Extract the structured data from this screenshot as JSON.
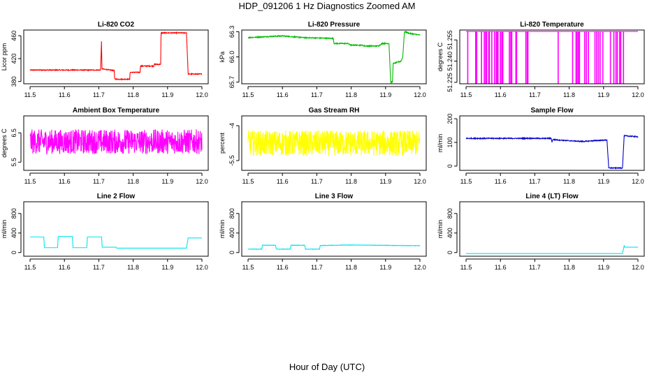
{
  "figure": {
    "title": "HDP_091206  1 Hz Diagnostics Zoomed AM",
    "xlabel": "Hour of Day (UTC)"
  },
  "chart_data": [
    {
      "type": "line",
      "title": "Li-820 CO2",
      "ylabel": "Licor ppm",
      "color": "#ff0000",
      "xlim": [
        11.5,
        12.0
      ],
      "ylim": [
        376,
        470
      ],
      "xticks": [
        "11.5",
        "11.6",
        "11.7",
        "11.8",
        "11.9",
        "12.0"
      ],
      "yticks": [
        {
          "v": 380,
          "label": "380"
        },
        {
          "v": 420,
          "label": "420"
        },
        {
          "v": 460,
          "label": "460"
        }
      ],
      "series": [
        {
          "name": "CO2",
          "noise": 0.8,
          "points": [
            [
              11.5,
              400
            ],
            [
              11.705,
              400
            ],
            [
              11.708,
              452
            ],
            [
              11.709,
              402
            ],
            [
              11.745,
              399
            ],
            [
              11.746,
              384
            ],
            [
              11.79,
              384
            ],
            [
              11.791,
              396
            ],
            [
              11.82,
              396
            ],
            [
              11.821,
              407
            ],
            [
              11.86,
              407
            ],
            [
              11.861,
              410
            ],
            [
              11.88,
              410
            ],
            [
              11.881,
              465
            ],
            [
              11.955,
              465
            ],
            [
              11.96,
              393
            ],
            [
              12.0,
              393
            ]
          ]
        }
      ]
    },
    {
      "type": "line",
      "title": "Li-820 Pressure",
      "ylabel": "kPa",
      "color": "#00bb00",
      "xlim": [
        11.5,
        12.0
      ],
      "ylim": [
        65.68,
        66.32
      ],
      "xticks": [
        "11.5",
        "11.6",
        "11.7",
        "11.8",
        "11.9",
        "12.0"
      ],
      "yticks": [
        {
          "v": 65.7,
          "label": "65.7"
        },
        {
          "v": 66.0,
          "label": "66.0"
        },
        {
          "v": 66.3,
          "label": "66.3"
        }
      ],
      "series": [
        {
          "name": "Pressure",
          "noise": 0.006,
          "points": [
            [
              11.5,
              66.23
            ],
            [
              11.6,
              66.25
            ],
            [
              11.66,
              66.23
            ],
            [
              11.748,
              66.22
            ],
            [
              11.75,
              66.16
            ],
            [
              11.79,
              66.16
            ],
            [
              11.8,
              66.14
            ],
            [
              11.83,
              66.14
            ],
            [
              11.84,
              66.13
            ],
            [
              11.88,
              66.13
            ],
            [
              11.89,
              66.16
            ],
            [
              11.91,
              66.16
            ],
            [
              11.915,
              65.7
            ],
            [
              11.92,
              65.7
            ],
            [
              11.922,
              65.92
            ],
            [
              11.945,
              65.95
            ],
            [
              11.95,
              66.0
            ],
            [
              11.955,
              66.3
            ],
            [
              11.97,
              66.28
            ],
            [
              12.0,
              66.26
            ]
          ]
        }
      ]
    },
    {
      "type": "line",
      "title": "Li-820 Temperature",
      "ylabel": "degrees C",
      "color": "#ff00ff",
      "xlim": [
        11.5,
        12.0
      ],
      "ylim": [
        51.224,
        51.262
      ],
      "xticks": [
        "11.5",
        "11.6",
        "11.7",
        "11.8",
        "11.9",
        "12.0"
      ],
      "yticks": [
        {
          "v": 51.225,
          "label": "51.225"
        },
        {
          "v": 51.24,
          "label": "51.240"
        },
        {
          "v": 51.255,
          "label": "51.255"
        }
      ],
      "series": [
        {
          "name": "Temperature",
          "noise": 0,
          "points": [
            [
              11.5,
              51.261
            ],
            [
              12.0,
              51.261
            ]
          ],
          "dips": [
            11.505,
            11.528,
            11.531,
            11.545,
            11.553,
            11.557,
            11.56,
            11.566,
            11.568,
            11.575,
            11.583,
            11.588,
            11.59,
            11.593,
            11.6,
            11.604,
            11.607,
            11.626,
            11.63,
            11.633,
            11.645,
            11.647,
            11.674,
            11.678,
            11.68,
            11.768,
            11.81,
            11.82,
            11.823,
            11.827,
            11.83,
            11.845,
            11.85,
            11.856,
            11.875,
            11.88,
            11.885,
            11.89,
            11.898,
            11.92,
            11.93,
            11.936,
            11.94,
            11.947,
            11.95,
            11.958
          ]
        }
      ]
    },
    {
      "type": "line",
      "title": "Ambient Box Temperature",
      "ylabel": "degrees C",
      "color": "#ff00ff",
      "xlim": [
        11.5,
        12.0
      ],
      "ylim": [
        5.22,
        7.08
      ],
      "xticks": [
        "11.5",
        "11.6",
        "11.7",
        "11.8",
        "11.9",
        "12.0"
      ],
      "yticks": [
        {
          "v": 5.5,
          "label": "5.5"
        },
        {
          "v": 6.5,
          "label": "6.5"
        }
      ],
      "series": [
        {
          "name": "Ambient",
          "noise": 0.42,
          "points": [
            [
              11.5,
              6.2
            ],
            [
              12.0,
              6.2
            ]
          ]
        }
      ]
    },
    {
      "type": "line",
      "title": "Gas Stream RH",
      "ylabel": "percent",
      "color": "#ffff00",
      "xlim": [
        11.5,
        12.0
      ],
      "ylim": [
        -5.92,
        -3.58
      ],
      "xticks": [
        "11.5",
        "11.6",
        "11.7",
        "11.8",
        "11.9",
        "12.0"
      ],
      "yticks": [
        {
          "v": -5.5,
          "label": "-5.5"
        },
        {
          "v": -4,
          "label": "-4"
        }
      ],
      "series": [
        {
          "name": "RH",
          "noise": 0.55,
          "points": [
            [
              11.5,
              -4.75
            ],
            [
              12.0,
              -4.75
            ]
          ]
        }
      ]
    },
    {
      "type": "line",
      "title": "Sample Flow",
      "ylabel": "ml/min",
      "color": "#0000cc",
      "xlim": [
        11.5,
        12.0
      ],
      "ylim": [
        -18,
        212
      ],
      "xticks": [
        "11.5",
        "11.6",
        "11.7",
        "11.8",
        "11.9",
        "12.0"
      ],
      "yticks": [
        {
          "v": 0,
          "label": "0"
        },
        {
          "v": 100,
          "label": "100"
        },
        {
          "v": 200,
          "label": "200"
        }
      ],
      "series": [
        {
          "name": "Sample",
          "noise": 2,
          "points": [
            [
              11.5,
              117
            ],
            [
              11.748,
              117
            ],
            [
              11.75,
              100
            ],
            [
              11.752,
              112
            ],
            [
              11.79,
              108
            ],
            [
              11.84,
              104
            ],
            [
              11.88,
              108
            ],
            [
              11.91,
              110
            ],
            [
              11.915,
              -8
            ],
            [
              11.955,
              -8
            ],
            [
              11.96,
              128
            ],
            [
              12.0,
              124
            ]
          ]
        }
      ]
    },
    {
      "type": "line",
      "title": "Line 2 Flow",
      "ylabel": "ml/min",
      "color": "#00e5ee",
      "xlim": [
        11.5,
        12.0
      ],
      "ylim": [
        -75,
        1040
      ],
      "xticks": [
        "11.5",
        "11.6",
        "11.7",
        "11.8",
        "11.9",
        "12.0"
      ],
      "yticks": [
        {
          "v": 0,
          "label": "0"
        },
        {
          "v": 400,
          "label": "400"
        },
        {
          "v": 800,
          "label": "800"
        }
      ],
      "series": [
        {
          "name": "Line 2",
          "noise": 0,
          "points": [
            [
              11.5,
              320
            ],
            [
              11.54,
              320
            ],
            [
              11.542,
              100
            ],
            [
              11.58,
              100
            ],
            [
              11.582,
              330
            ],
            [
              11.623,
              330
            ],
            [
              11.625,
              100
            ],
            [
              11.665,
              100
            ],
            [
              11.667,
              320
            ],
            [
              11.708,
              320
            ],
            [
              11.71,
              110
            ],
            [
              11.75,
              110
            ],
            [
              11.752,
              90
            ],
            [
              11.955,
              90
            ],
            [
              11.96,
              300
            ],
            [
              12.0,
              300
            ]
          ]
        }
      ]
    },
    {
      "type": "line",
      "title": "Line 3 Flow",
      "ylabel": "ml/min",
      "color": "#00e5ee",
      "xlim": [
        11.5,
        12.0
      ],
      "ylim": [
        -75,
        1040
      ],
      "xticks": [
        "11.5",
        "11.6",
        "11.7",
        "11.8",
        "11.9",
        "12.0"
      ],
      "yticks": [
        {
          "v": 0,
          "label": "0"
        },
        {
          "v": 400,
          "label": "400"
        },
        {
          "v": 800,
          "label": "800"
        }
      ],
      "series": [
        {
          "name": "Line 3",
          "noise": 4,
          "points": [
            [
              11.5,
              70
            ],
            [
              11.54,
              70
            ],
            [
              11.542,
              150
            ],
            [
              11.58,
              150
            ],
            [
              11.582,
              70
            ],
            [
              11.623,
              70
            ],
            [
              11.625,
              150
            ],
            [
              11.665,
              150
            ],
            [
              11.667,
              70
            ],
            [
              11.708,
              70
            ],
            [
              11.71,
              145
            ],
            [
              11.8,
              155
            ],
            [
              12.0,
              140
            ]
          ]
        }
      ]
    },
    {
      "type": "line",
      "title": "Line 4 (LT) Flow",
      "ylabel": "ml/min",
      "color": "#00e5ee",
      "xlim": [
        11.5,
        12.0
      ],
      "ylim": [
        -75,
        1040
      ],
      "xticks": [
        "11.5",
        "11.6",
        "11.7",
        "11.8",
        "11.9",
        "12.0"
      ],
      "yticks": [
        {
          "v": 0,
          "label": "0"
        },
        {
          "v": 400,
          "label": "400"
        },
        {
          "v": 800,
          "label": "800"
        }
      ],
      "series": [
        {
          "name": "Line 4 (LT)",
          "noise": 0,
          "points": [
            [
              11.5,
              -20
            ],
            [
              11.955,
              -20
            ],
            [
              11.96,
              140
            ],
            [
              11.962,
              110
            ],
            [
              12.0,
              110
            ]
          ]
        }
      ]
    }
  ]
}
